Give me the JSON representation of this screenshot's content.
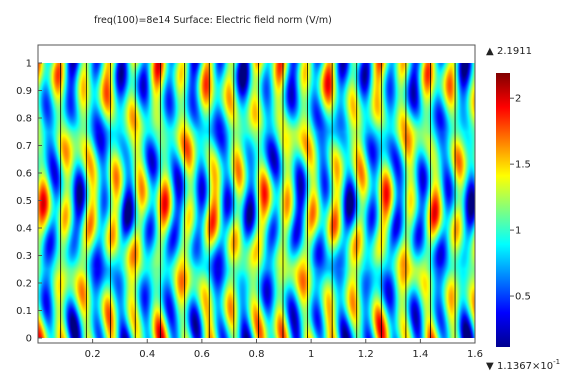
{
  "chart_data": {
    "type": "heatmap",
    "title": "freq(100)=8e14   Surface: Electric field norm (V/m)",
    "xlim": [
      0,
      1.6
    ],
    "ylim": [
      0,
      1
    ],
    "x_ticks": [
      "0.2",
      "0.4",
      "0.6",
      "0.8",
      "1",
      "1.2",
      "1.4",
      "1.6"
    ],
    "y_ticks": [
      "0",
      "0.1",
      "0.2",
      "0.3",
      "0.4",
      "0.5",
      "0.6",
      "0.7",
      "0.8",
      "0.9",
      "1"
    ],
    "colorscale": "jet",
    "color_range": [
      0.11367,
      2.1911
    ],
    "colorbar_ticks": [
      "0.5",
      "1",
      "1.5",
      "2"
    ],
    "colorbar_ticks_values": [
      0.5,
      1,
      1.5,
      2
    ],
    "colorbar_max_label": "2.1911",
    "colorbar_min_label": "1.1367×10",
    "colorbar_min_exponent": "-1",
    "colorbar_max_marker": "▲",
    "colorbar_min_marker": "▼",
    "grating_boundaries_x": [
      0.083,
      0.177,
      0.265,
      0.356,
      0.448,
      0.537,
      0.627,
      0.717,
      0.807,
      0.897,
      0.987,
      1.077,
      1.167,
      1.257,
      1.347,
      1.437,
      1.527,
      1.6
    ]
  }
}
